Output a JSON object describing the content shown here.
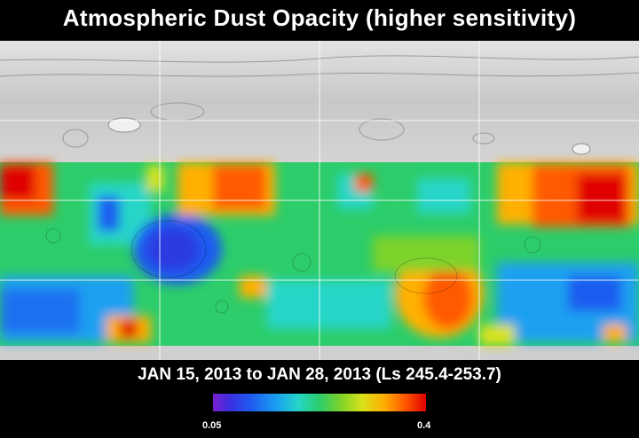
{
  "title": "Atmospheric Dust Opacity (higher sensitivity)",
  "subtitle": "JAN 15, 2013 to JAN 28, 2013 (Ls 245.4-253.7)",
  "colorbar": {
    "min_label": "0.05",
    "max_label": "0.4",
    "min_value": 0.05,
    "max_value": 0.4,
    "colors": [
      "#7a1fd0",
      "#1e5cf0",
      "#25d6c8",
      "#2ccd6a",
      "#d9e21a",
      "#ff5a00",
      "#e00000"
    ]
  },
  "map": {
    "grid_columns": 4,
    "grid_rows": 4,
    "no_data_color": "#cfcfcf"
  }
}
